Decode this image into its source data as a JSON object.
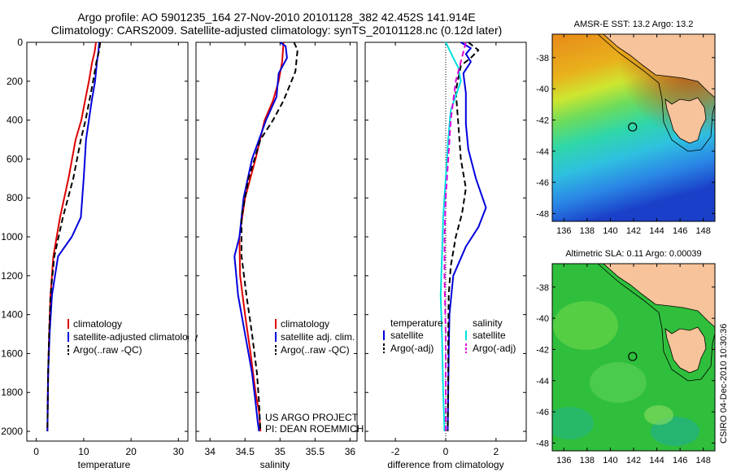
{
  "header": {
    "line1": "Argo profile: AO 5901235_164 27-Nov-2010 20101128_382 42.452S 141.914E",
    "line2": "Climatology: CARS2009. Satellite-adjusted climatology: synTS_20101128.nc (0.12d later)"
  },
  "colors": {
    "climatology": "#dd0000",
    "satellite": "#0000dd",
    "argo": "#000000",
    "sat_diff": "#00e0e0",
    "argo_sal_diff": "#dd00dd"
  },
  "chart_data": [
    {
      "id": "temperature",
      "type": "line",
      "xlabel": "temperature",
      "ylabel": "",
      "xlim": [
        -2,
        32
      ],
      "ylim": [
        2050,
        0
      ],
      "xticks": [
        0,
        10,
        20,
        30
      ],
      "yticks": [
        0,
        200,
        400,
        600,
        800,
        1000,
        1200,
        1400,
        1600,
        1800,
        2000
      ],
      "legend": {
        "position": "lower-right",
        "entries": [
          "climatology",
          "satellite-adjusted climatology",
          "Argo(..raw -QC)"
        ]
      },
      "series": [
        {
          "name": "climatology",
          "color": "#dd0000",
          "dash": "solid",
          "x": [
            12.6,
            12.3,
            11.8,
            11.1,
            10.3,
            9.5,
            8.3,
            6.8,
            5.0,
            3.6,
            3.0,
            2.7,
            2.5,
            2.4,
            2.35
          ],
          "y": [
            0,
            50,
            100,
            200,
            300,
            400,
            500,
            700,
            900,
            1100,
            1300,
            1500,
            1700,
            1900,
            2000
          ]
        },
        {
          "name": "satellite-adjusted climatology",
          "color": "#0000dd",
          "dash": "solid",
          "x": [
            13.3,
            13.1,
            12.8,
            12.4,
            11.7,
            11.1,
            10.5,
            10.0,
            9.4,
            7.5,
            4.6,
            3.3,
            2.8,
            2.5,
            2.4,
            2.35
          ],
          "y": [
            0,
            50,
            100,
            200,
            300,
            400,
            500,
            700,
            900,
            1000,
            1100,
            1300,
            1500,
            1700,
            1900,
            2000
          ]
        },
        {
          "name": "Argo(..raw -QC)",
          "color": "#000000",
          "dash": "dash",
          "x": [
            13.5,
            13.2,
            12.7,
            12.0,
            11.2,
            10.4,
            9.4,
            7.8,
            5.6,
            3.8,
            3.0,
            2.7,
            2.5,
            2.4,
            2.35
          ],
          "y": [
            0,
            50,
            100,
            200,
            300,
            400,
            500,
            700,
            900,
            1100,
            1300,
            1500,
            1700,
            1900,
            2000
          ]
        }
      ]
    },
    {
      "id": "salinity",
      "type": "line",
      "xlabel": "salinity",
      "ylabel": "",
      "xlim": [
        33.8,
        36.1
      ],
      "ylim": [
        2050,
        0
      ],
      "xticks": [
        34,
        34.5,
        35,
        35.5,
        36
      ],
      "legend": {
        "position": "lower-right",
        "entries": [
          "climatology",
          "satellite adj. clim.",
          "Argo(..raw -QC)"
        ]
      },
      "annotation": [
        "US ARGO PROJECT",
        "PI: DEAN ROEMMICH"
      ],
      "series": [
        {
          "name": "climatology",
          "color": "#dd0000",
          "dash": "solid",
          "x": [
            35.05,
            35.03,
            34.98,
            34.9,
            34.78,
            34.65,
            34.5,
            34.42,
            34.43,
            34.5,
            34.58,
            34.65,
            34.7,
            34.72
          ],
          "y": [
            0,
            100,
            200,
            300,
            400,
            600,
            800,
            1000,
            1200,
            1400,
            1600,
            1800,
            1900,
            2000
          ]
        },
        {
          "name": "satellite adj. clim.",
          "color": "#0000dd",
          "dash": "solid",
          "x": [
            35.0,
            35.08,
            35.1,
            34.98,
            34.95,
            34.8,
            34.6,
            34.48,
            34.42,
            34.35,
            34.4,
            34.5,
            34.6,
            34.65,
            34.68,
            34.7
          ],
          "y": [
            0,
            20,
            80,
            160,
            280,
            400,
            600,
            800,
            1000,
            1100,
            1300,
            1500,
            1700,
            1850,
            1950,
            2000
          ]
        },
        {
          "name": "Argo(..raw -QC)",
          "color": "#000000",
          "dash": "dash",
          "x": [
            35.2,
            35.25,
            35.22,
            35.05,
            34.9,
            34.72,
            34.55,
            34.45,
            34.45,
            34.52,
            34.6,
            34.67,
            34.7,
            34.72
          ],
          "y": [
            0,
            40,
            150,
            300,
            400,
            500,
            700,
            900,
            1100,
            1300,
            1500,
            1700,
            1850,
            2000
          ]
        }
      ]
    },
    {
      "id": "difference",
      "type": "line",
      "xlabel": "difference from climatology",
      "ylabel": "",
      "xlim": [
        -3.2,
        3.2
      ],
      "ylim": [
        2050,
        0
      ],
      "xticks": [
        -2,
        0,
        2
      ],
      "legend": {
        "position": "lower-right",
        "groups": [
          {
            "heading": "temperature",
            "entries": [
              "satellite",
              "Argo(-adj)"
            ]
          },
          {
            "heading": "salinity",
            "entries": [
              "satellite",
              "Argo(-adj)"
            ]
          }
        ]
      },
      "series": [
        {
          "name": "temperature satellite",
          "color": "#0000dd",
          "dash": "solid",
          "x": [
            0.6,
            1.0,
            0.8,
            1.0,
            0.7,
            0.8,
            0.8,
            0.9,
            1.2,
            1.6,
            1.3,
            0.8,
            0.3,
            0.15,
            0.12,
            0.1,
            0.08
          ],
          "y": [
            0,
            30,
            60,
            100,
            160,
            260,
            420,
            550,
            700,
            850,
            950,
            1050,
            1200,
            1400,
            1600,
            1800,
            2000
          ]
        },
        {
          "name": "temperature Argo(-adj)",
          "color": "#000000",
          "dash": "dash",
          "x": [
            0.9,
            1.3,
            1.0,
            0.6,
            0.4,
            0.5,
            0.6,
            0.8,
            0.65,
            0.4,
            0.2,
            0.12,
            0.1,
            0.1,
            0.08
          ],
          "y": [
            0,
            40,
            80,
            120,
            250,
            420,
            600,
            750,
            880,
            1000,
            1150,
            1300,
            1500,
            1700,
            2000
          ]
        },
        {
          "name": "salinity satellite",
          "color": "#00e0e0",
          "dash": "solid",
          "x": [
            0.0,
            0.3,
            0.5,
            0.6,
            0.2,
            0.1,
            0.0,
            -0.1,
            -0.15,
            -0.2,
            -0.15,
            -0.1,
            -0.05
          ],
          "y": [
            0,
            80,
            130,
            200,
            350,
            500,
            700,
            900,
            1100,
            1300,
            1500,
            1800,
            2000
          ]
        },
        {
          "name": "salinity Argo(-adj)",
          "color": "#dd00dd",
          "dash": "dash",
          "x": [
            0.8,
            0.6,
            0.4,
            0.2,
            0.1,
            0.0,
            -0.05,
            -0.05,
            0.0,
            0.0
          ],
          "y": [
            0,
            100,
            200,
            400,
            600,
            800,
            1000,
            1200,
            1500,
            2000
          ]
        }
      ]
    },
    {
      "id": "sst-map",
      "type": "heatmap",
      "title": "AMSR-E SST: 13.2 Argo: 13.2",
      "xlim": [
        135,
        149
      ],
      "ylim": [
        -48.5,
        -36.5
      ],
      "xticks": [
        136,
        138,
        140,
        142,
        144,
        146,
        148
      ],
      "yticks": [
        -38,
        -40,
        -42,
        -44,
        -46,
        -48
      ],
      "marker": {
        "lon": 141.914,
        "lat": -42.452
      }
    },
    {
      "id": "sla-map",
      "type": "heatmap",
      "title": "Altimetric SLA: 0.11 Argo: 0.00039",
      "xlim": [
        135,
        149
      ],
      "ylim": [
        -48.5,
        -36.5
      ],
      "xticks": [
        136,
        138,
        140,
        142,
        144,
        146,
        148
      ],
      "yticks": [
        -38,
        -40,
        -42,
        -44,
        -46,
        -48
      ],
      "marker": {
        "lon": 141.914,
        "lat": -42.452
      }
    }
  ],
  "side_label": "CSIRO 04-Dec-2010 10:30:36"
}
